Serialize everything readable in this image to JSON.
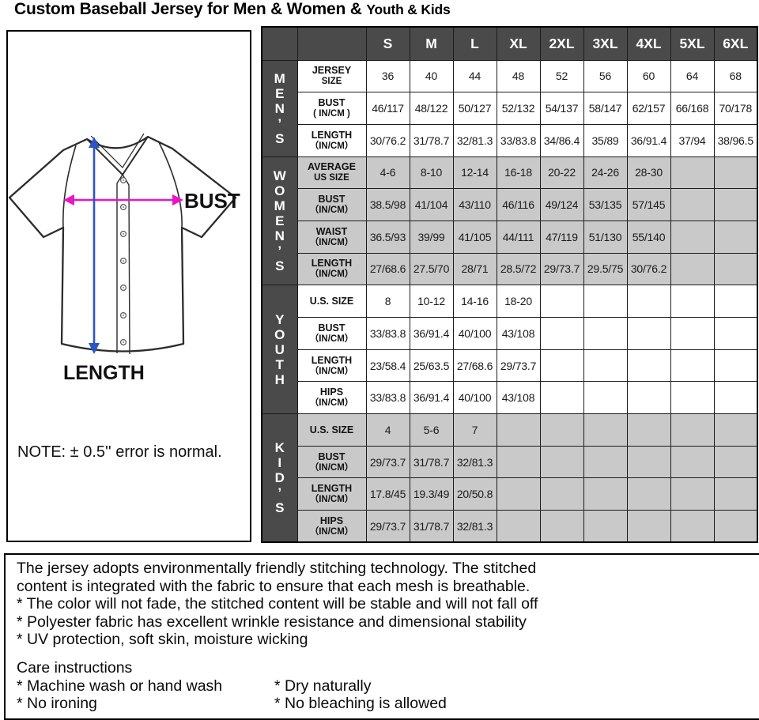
{
  "title": {
    "main": "Custom Baseball Jersey for Men & Women &",
    "tail": "Youth & Kids"
  },
  "diagram": {
    "bust_label": "BUST",
    "length_label": "LENGTH",
    "note": "NOTE: ± 0.5'' error is normal.",
    "bust_arrow_color": "#e816c6",
    "length_arrow_color": "#2b55c8"
  },
  "chart_data": {
    "type": "table",
    "title": "Baseball jersey size chart (IN/CM)",
    "columns": [
      "S",
      "M",
      "L",
      "XL",
      "2XL",
      "3XL",
      "4XL",
      "5XL",
      "6XL"
    ],
    "sections": [
      {
        "name": "MEN'S",
        "letters": "MEN’S",
        "shaded": false,
        "rows": [
          {
            "label": "JERSEY",
            "sub": "SIZE",
            "values": [
              "36",
              "40",
              "44",
              "48",
              "52",
              "56",
              "60",
              "64",
              "68"
            ]
          },
          {
            "label": "BUST",
            "sub": "( IN/CM )",
            "values": [
              "46/117",
              "48/122",
              "50/127",
              "52/132",
              "54/137",
              "58/147",
              "62/157",
              "66/168",
              "70/178"
            ]
          },
          {
            "label": "LENGTH",
            "sub": "（IN/CM）",
            "values": [
              "30/76.2",
              "31/78.7",
              "32/81.3",
              "33/83.8",
              "34/86.4",
              "35/89",
              "36/91.4",
              "37/94",
              "38/96.5"
            ]
          }
        ]
      },
      {
        "name": "WOMEN'S",
        "letters": "WOMEN’S",
        "shaded": true,
        "rows": [
          {
            "label": "AVERAGE",
            "sub": "US SIZE",
            "values": [
              "4-6",
              "8-10",
              "12-14",
              "16-18",
              "20-22",
              "24-26",
              "28-30",
              "",
              ""
            ]
          },
          {
            "label": "BUST",
            "sub": "（IN/CM）",
            "values": [
              "38.5/98",
              "41/104",
              "43/110",
              "46/116",
              "49/124",
              "53/135",
              "57/145",
              "",
              ""
            ]
          },
          {
            "label": "WAIST",
            "sub": "（IN/CM）",
            "values": [
              "36.5/93",
              "39/99",
              "41/105",
              "44/111",
              "47/119",
              "51/130",
              "55/140",
              "",
              ""
            ]
          },
          {
            "label": "LENGTH",
            "sub": "（IN/CM）",
            "values": [
              "27/68.6",
              "27.5/70",
              "28/71",
              "28.5/72",
              "29/73.7",
              "29.5/75",
              "30/76.2",
              "",
              ""
            ]
          }
        ]
      },
      {
        "name": "YOUTH",
        "letters": "YOUTH",
        "shaded": false,
        "rows": [
          {
            "label": "U.S. SIZE",
            "sub": "",
            "values": [
              "8",
              "10-12",
              "14-16",
              "18-20",
              "",
              "",
              "",
              "",
              ""
            ]
          },
          {
            "label": "BUST",
            "sub": "（IN/CM）",
            "values": [
              "33/83.8",
              "36/91.4",
              "40/100",
              "43/108",
              "",
              "",
              "",
              "",
              ""
            ]
          },
          {
            "label": "LENGTH",
            "sub": "（IN/CM）",
            "values": [
              "23/58.4",
              "25/63.5",
              "27/68.6",
              "29/73.7",
              "",
              "",
              "",
              "",
              ""
            ]
          },
          {
            "label": "HIPS",
            "sub": "（IN/CM）",
            "values": [
              "33/83.8",
              "36/91.4",
              "40/100",
              "43/108",
              "",
              "",
              "",
              "",
              ""
            ]
          }
        ]
      },
      {
        "name": "KID'S",
        "letters": "KID’S",
        "shaded": true,
        "rows": [
          {
            "label": "U.S. SIZE",
            "sub": "",
            "values": [
              "4",
              "5-6",
              "7",
              "",
              "",
              "",
              "",
              "",
              ""
            ]
          },
          {
            "label": "BUST",
            "sub": "（IN/CM）",
            "values": [
              "29/73.7",
              "31/78.7",
              "32/81.3",
              "",
              "",
              "",
              "",
              "",
              ""
            ]
          },
          {
            "label": "LENGTH",
            "sub": "（IN/CM）",
            "values": [
              "17.8/45",
              "19.3/49",
              "20/50.8",
              "",
              "",
              "",
              "",
              "",
              ""
            ]
          },
          {
            "label": "HIPS",
            "sub": "（IN/CM）",
            "values": [
              "29/73.7",
              "31/78.7",
              "32/81.3",
              "",
              "",
              "",
              "",
              "",
              ""
            ]
          }
        ]
      }
    ],
    "colors": {
      "header_bg": "#4a4a4a",
      "header_text": "#ffffff",
      "shaded_row_bg": "#c9c9c9",
      "border": "#1c1c1c"
    }
  },
  "description": {
    "lines": [
      "The jersey adopts environmentally friendly stitching technology. The stitched",
      "content is integrated with the fabric to ensure that each mesh is breathable.",
      "* The color will not fade, the stitched content will be stable and will not fall off",
      "* Polyester fabric has excellent wrinkle resistance and dimensional stability",
      "* UV protection, soft skin, moisture wicking"
    ]
  },
  "care": {
    "heading": "Care instructions",
    "left": [
      "* Machine wash or hand wash",
      "* No ironing"
    ],
    "right": [
      "* Dry naturally",
      "* No bleaching is allowed"
    ]
  }
}
